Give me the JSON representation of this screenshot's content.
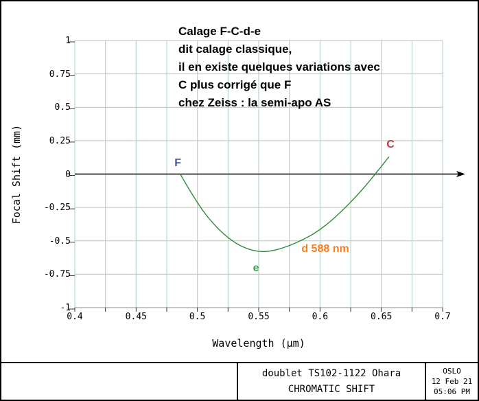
{
  "colors": {
    "background": "#ffffff",
    "border": "#000000",
    "grid_vertical": "#aecfb8",
    "grid_horizontal": "#bcc2bc",
    "axis_line": "#8a8a8a",
    "tick_mark": "#333333",
    "zero_axis": "#000000",
    "curve": "#2e8b3c",
    "label_F": "#4a52a0",
    "label_C": "#c03a4a",
    "label_e": "#3ba14f",
    "label_d": "#f57e22",
    "text": "#000000"
  },
  "annotation": {
    "lines": [
      "Calage F-C-d-e",
      "dit calage classique,",
      "il en existe quelques variations avec",
      "C plus corrigé que F",
      "chez Zeiss : la semi-apo AS"
    ]
  },
  "chart_data": {
    "type": "line",
    "title": "CHROMATIC SHIFT",
    "xlabel": "Wavelength (μm)",
    "ylabel": "Focal Shift (mm)",
    "xlim": [
      0.4,
      0.7
    ],
    "ylim": [
      -1,
      1
    ],
    "grid": true,
    "x_tick_labels": [
      "0.4",
      "0.45",
      "0.5",
      "0.55",
      "0.6",
      "0.65",
      "0.7"
    ],
    "x_tick_values": [
      0.4,
      0.45,
      0.5,
      0.55,
      0.6,
      0.65,
      0.7
    ],
    "x_minor_tick_step": 0.025,
    "y_tick_labels": [
      "1",
      "0.75",
      "0.5",
      "0.25",
      "0",
      "-0.25",
      "-0.5",
      "-0.75",
      "-1"
    ],
    "y_tick_values": [
      1,
      0.75,
      0.5,
      0.25,
      0,
      -0.25,
      -0.5,
      -0.75,
      -1
    ],
    "zero_axis_arrow": true,
    "series": [
      {
        "name": "chromatic focal shift",
        "color_key": "curve",
        "x": [
          0.486,
          0.495,
          0.505,
          0.515,
          0.525,
          0.535,
          0.545,
          0.555,
          0.565,
          0.575,
          0.585,
          0.595,
          0.605,
          0.615,
          0.625,
          0.635,
          0.645,
          0.6563
        ],
        "y": [
          0.0,
          -0.14,
          -0.28,
          -0.39,
          -0.475,
          -0.535,
          -0.57,
          -0.58,
          -0.565,
          -0.535,
          -0.495,
          -0.445,
          -0.38,
          -0.3,
          -0.21,
          -0.11,
          0.0,
          0.13
        ]
      }
    ],
    "point_labels": [
      {
        "text": "F",
        "x": 0.484,
        "y": 0.08,
        "color_key": "label_F"
      },
      {
        "text": "C",
        "x": 0.6575,
        "y": 0.219,
        "color_key": "label_C"
      },
      {
        "text": "e",
        "x": 0.5478,
        "y": -0.707,
        "color_key": "label_e"
      },
      {
        "text": "d 588 nm",
        "x": 0.6043,
        "y": -0.563,
        "color_key": "label_d"
      }
    ]
  },
  "footer": {
    "lens_label": "doublet TS102-1122 Ohara",
    "plot_title": "CHROMATIC SHIFT",
    "app_name": "OSLO",
    "date": "12 Feb 21",
    "time": "05:06 PM"
  }
}
